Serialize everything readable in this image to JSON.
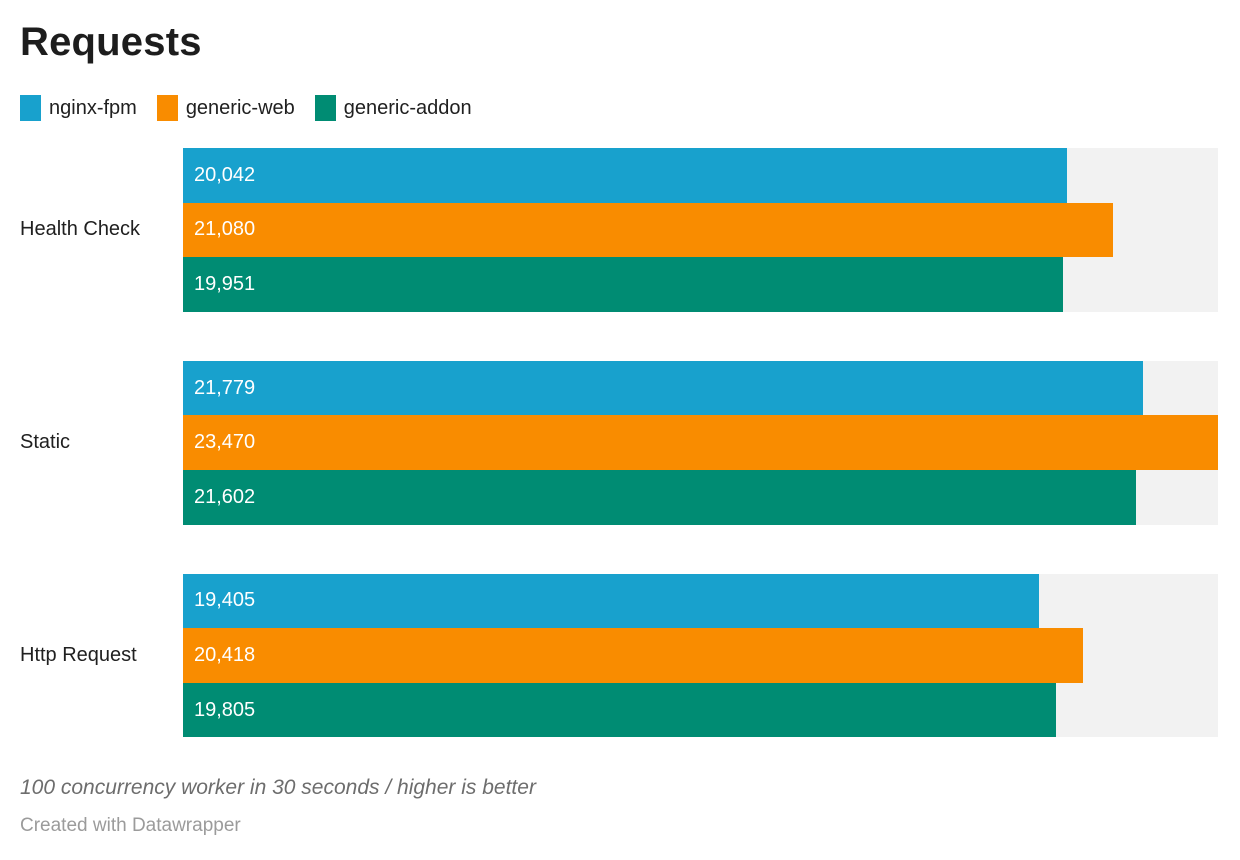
{
  "title": "Requests",
  "legend": {
    "items": [
      {
        "label": "nginx-fpm",
        "color": "#18a1cd"
      },
      {
        "label": "generic-web",
        "color": "#f98c00"
      },
      {
        "label": "generic-addon",
        "color": "#008c73"
      }
    ]
  },
  "chart_data": {
    "type": "bar",
    "orientation": "horizontal",
    "title": "Requests",
    "categories": [
      "Health Check",
      "Static",
      "Http Request"
    ],
    "series": [
      {
        "name": "nginx-fpm",
        "color": "#18a1cd",
        "values": [
          20042,
          21779,
          19405
        ],
        "labels": [
          "20,042",
          "21,779",
          "19,405"
        ]
      },
      {
        "name": "generic-web",
        "color": "#f98c00",
        "values": [
          21080,
          23470,
          20418
        ],
        "labels": [
          "21,080",
          "23,470",
          "20,418"
        ]
      },
      {
        "name": "generic-addon",
        "color": "#008c73",
        "values": [
          19951,
          21602,
          19805
        ],
        "labels": [
          "19,951",
          "21,602",
          "19,805"
        ]
      }
    ],
    "xlim": [
      0,
      23470
    ],
    "track_color": "#f2f2f2",
    "grid": false,
    "legend_position": "top",
    "value_labels_inside_bars": true
  },
  "notes": "100 concurrency worker in 30 seconds / higher is better",
  "credit": "Created with Datawrapper"
}
